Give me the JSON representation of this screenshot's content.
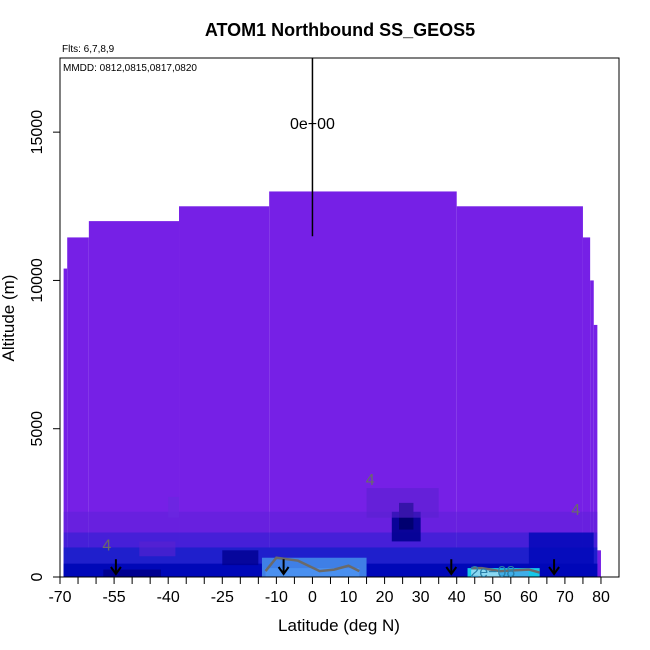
{
  "chart_data": {
    "type": "heatmap",
    "title": "ATOM1 Northbound SS_GEOS5",
    "flights_note": "Flts: 6,7,8,9",
    "dates_note": "MMDD: 0812,0815,0817,0820",
    "xlabel": "Latitude (deg N)",
    "ylabel": "Altitude (m)",
    "xlim": [
      -70,
      85
    ],
    "ylim": [
      0,
      17500
    ],
    "x_ticks": [
      -70,
      -55,
      -40,
      -25,
      -10,
      0,
      10,
      20,
      30,
      40,
      50,
      60,
      70,
      80
    ],
    "x_tick_labels": [
      "-70",
      "-55",
      "-40",
      "-25",
      "-10",
      "0",
      "10",
      "20",
      "30",
      "40",
      "50",
      "60",
      "70",
      "80"
    ],
    "x_minor_ticks": [
      -65,
      -60,
      -50,
      -45,
      -35,
      -30,
      -20,
      -15,
      -5,
      5,
      15,
      25,
      35,
      45,
      55,
      65,
      75
    ],
    "y_ticks": [
      0,
      5000,
      10000,
      15000
    ],
    "y_tick_labels": [
      "0",
      "5000",
      "10000",
      "15000"
    ],
    "grid": false,
    "legend": "none",
    "colors": {
      "background_field": "#7620e6",
      "mid_blue": "#1f1fcc",
      "dark_blue": "#0008b8",
      "navy": "#000090",
      "light_blue": "#3f7fe6",
      "cyan": "#16c8e8",
      "contour": "#6a6a6a",
      "arrow": "#000000"
    },
    "domain_top_segments": [
      {
        "lat_from": -69,
        "lat_to": -68,
        "alt_top": 10400
      },
      {
        "lat_from": -68,
        "lat_to": -62,
        "alt_top": 11450
      },
      {
        "lat_from": -62,
        "lat_to": -37,
        "alt_top": 12000
      },
      {
        "lat_from": -37,
        "lat_to": -12,
        "alt_top": 12500
      },
      {
        "lat_from": -12,
        "lat_to": 40,
        "alt_top": 13000
      },
      {
        "lat_from": 40,
        "lat_to": 75,
        "alt_top": 12500
      },
      {
        "lat_from": 75,
        "lat_to": 77,
        "alt_top": 11450
      },
      {
        "lat_from": 77,
        "lat_to": 78,
        "alt_top": 10000
      },
      {
        "lat_from": 78,
        "lat_to": 79,
        "alt_top": 8500
      },
      {
        "lat_from": 79,
        "lat_to": 80,
        "alt_top": 900
      }
    ],
    "contour_labels": [
      {
        "text": "0e+00",
        "lat": 0,
        "alt": 15300
      },
      {
        "text": "4",
        "lat": 16,
        "alt": 3300
      },
      {
        "text": "4",
        "lat": -57,
        "alt": 1100
      },
      {
        "text": "4",
        "lat": 73,
        "alt": 2300
      },
      {
        "text": "2e−08",
        "lat": 50,
        "alt": 200
      }
    ],
    "vertical_line": {
      "lat": 0,
      "alt_from": 12500,
      "alt_to": 17500
    },
    "sounding_arrows": [
      {
        "lat": -54.5,
        "alt_from": 600,
        "alt_to": 0
      },
      {
        "lat": -8,
        "alt_from": 600,
        "alt_to": 0
      },
      {
        "lat": 38.5,
        "alt_from": 600,
        "alt_to": 0
      },
      {
        "lat": 67,
        "alt_from": 600,
        "alt_to": 0
      }
    ]
  }
}
